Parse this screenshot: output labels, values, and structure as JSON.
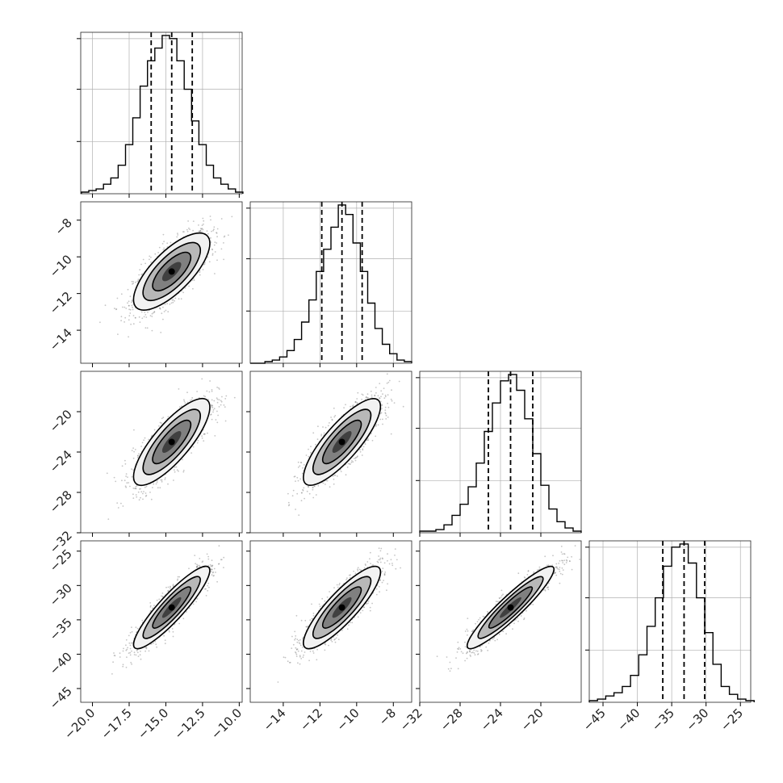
{
  "chart_data": {
    "type": "corner",
    "grid": true,
    "params": [
      {
        "range": [
          -20.8,
          -9.8
        ],
        "ticks": [
          -20.0,
          -17.5,
          -15.0,
          -12.5,
          -10.0
        ],
        "tick_labels": [
          "−20.0",
          "−17.5",
          "−15.0",
          "−12.5",
          "−10.0"
        ],
        "quantiles": [
          -16.0,
          -14.6,
          -13.2
        ]
      },
      {
        "range": [
          -15.8,
          -7.0
        ],
        "ticks": [
          -14,
          -12,
          -10,
          -8
        ],
        "tick_labels": [
          "−14",
          "−12",
          "−10",
          "−8"
        ],
        "quantiles": [
          -11.9,
          -10.8,
          -9.7
        ]
      },
      {
        "range": [
          -32.0,
          -16.0
        ],
        "ticks": [
          -32,
          -28,
          -24,
          -20
        ],
        "tick_labels": [
          "−32",
          "−28",
          "−24",
          "−20"
        ],
        "quantiles": [
          -25.2,
          -23.0,
          -20.8
        ]
      },
      {
        "range": [
          -47.0,
          -23.5
        ],
        "ticks": [
          -45,
          -40,
          -35,
          -30,
          -25
        ],
        "tick_labels": [
          "−45",
          "−40",
          "−35",
          "−30",
          "−25"
        ],
        "quantiles": [
          -36.3,
          -33.2,
          -30.2
        ]
      }
    ],
    "histograms": [
      {
        "bins": [
          -20.5,
          -20.0,
          -19.5,
          -19.0,
          -18.5,
          -18.0,
          -17.5,
          -17.0,
          -16.5,
          -16.0,
          -15.5,
          -15.0,
          -14.5,
          -14.0,
          -13.5,
          -13.0,
          -12.5,
          -12.0,
          -11.5,
          -11.0,
          -10.5,
          -10.0
        ],
        "counts": [
          1,
          2,
          3,
          6,
          10,
          18,
          31,
          48,
          68,
          84,
          92,
          100,
          98,
          84,
          66,
          46,
          31,
          18,
          10,
          6,
          3,
          1
        ]
      },
      {
        "bins": [
          -15.6,
          -15.2,
          -14.8,
          -14.4,
          -14.0,
          -13.6,
          -13.2,
          -12.8,
          -12.4,
          -12.0,
          -11.6,
          -11.2,
          -10.8,
          -10.4,
          -10.0,
          -9.6,
          -9.2,
          -8.8,
          -8.4,
          -8.0,
          -7.6,
          -7.2
        ],
        "counts": [
          0,
          0,
          1,
          2,
          4,
          8,
          15,
          26,
          40,
          58,
          72,
          86,
          100,
          94,
          76,
          58,
          38,
          22,
          12,
          6,
          2,
          1
        ]
      },
      {
        "bins": [
          -31.6,
          -30.8,
          -30.0,
          -29.2,
          -28.4,
          -27.6,
          -26.8,
          -26.0,
          -25.2,
          -24.4,
          -23.6,
          -22.8,
          -22.0,
          -21.2,
          -20.4,
          -19.6,
          -18.8,
          -18.0,
          -17.2,
          -16.4
        ],
        "counts": [
          1,
          1,
          2,
          5,
          11,
          18,
          29,
          44,
          64,
          82,
          96,
          100,
          90,
          72,
          50,
          30,
          15,
          7,
          3,
          1
        ]
      },
      {
        "bins": [
          -46.4,
          -45.2,
          -44.0,
          -42.8,
          -41.6,
          -40.4,
          -39.2,
          -38.0,
          -36.8,
          -35.6,
          -34.4,
          -33.2,
          -32.0,
          -30.8,
          -29.6,
          -28.4,
          -27.2,
          -26.0,
          -24.8,
          -23.6
        ],
        "counts": [
          1,
          2,
          4,
          6,
          10,
          17,
          30,
          48,
          66,
          86,
          98,
          100,
          88,
          66,
          44,
          24,
          10,
          5,
          2,
          1
        ]
      }
    ],
    "pairs": [
      {
        "x": 0,
        "y": 1,
        "mean": [
          -14.6,
          -10.8
        ],
        "sd": [
          1.3,
          1.05
        ],
        "corr": 0.73
      },
      {
        "x": 0,
        "y": 2,
        "mean": [
          -14.6,
          -23.0
        ],
        "sd": [
          1.3,
          2.15
        ],
        "corr": 0.8
      },
      {
        "x": 1,
        "y": 2,
        "mean": [
          -10.8,
          -23.0
        ],
        "sd": [
          1.05,
          2.15
        ],
        "corr": 0.82
      },
      {
        "x": 0,
        "y": 3,
        "mean": [
          -14.6,
          -33.2
        ],
        "sd": [
          1.3,
          3.0
        ],
        "corr": 0.9
      },
      {
        "x": 1,
        "y": 3,
        "mean": [
          -10.8,
          -33.2
        ],
        "sd": [
          1.05,
          3.0
        ],
        "corr": 0.86
      },
      {
        "x": 2,
        "y": 3,
        "mean": [
          -23.0,
          -33.2
        ],
        "sd": [
          2.15,
          3.0
        ],
        "corr": 0.93
      }
    ],
    "contour_levels_sigma": [
      0.5,
      1.0,
      1.5,
      2.0
    ],
    "colors": {
      "line": "#000000",
      "grid": "#b0b0b0",
      "points": "#7f7f7f",
      "fill": [
        "#f2f2f2",
        "#b8b8b8",
        "#808080",
        "#404040"
      ]
    }
  }
}
